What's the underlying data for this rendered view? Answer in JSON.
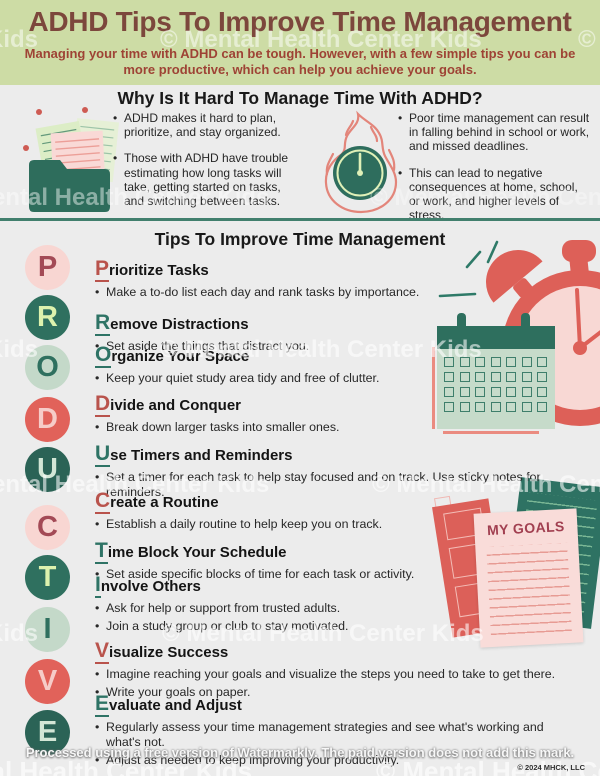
{
  "header": {
    "title": "ADHD Tips To Improve Time Management",
    "subtitle": "Managing your time with ADHD can be tough.  However, with a few simple tips you can be more productive, which can help you achieve your goals."
  },
  "why_section": {
    "title": "Why Is It Hard To Manage Time With ADHD?",
    "icons": {
      "left": "folder-with-documents-icon",
      "right": "clock-on-fire-icon"
    },
    "left_bullets": [
      "ADHD makes it hard to plan, prioritize, and stay organized.",
      "Those with ADHD have trouble estimating how long tasks will take, getting started on tasks, and switching between tasks."
    ],
    "right_bullets": [
      "Poor time management can result in falling behind in school or work, and missed deadlines.",
      "This can lead to negative consequences at home, school, or work, and higher levels of stress."
    ]
  },
  "tips_section": {
    "title": "Tips To Improve Time Management",
    "acronym": [
      "P",
      "R",
      "O",
      "D",
      "U",
      "C",
      "T",
      "I",
      "V",
      "E"
    ],
    "tips": [
      {
        "letter": "P",
        "rest": "rioritize Tasks",
        "accent": "red",
        "bullets": [
          "Make a to-do list each day and rank tasks by importance."
        ]
      },
      {
        "letter": "R",
        "rest": "emove Distractions",
        "accent": "teal",
        "bullets": [
          "Set aside the things that distract you."
        ]
      },
      {
        "letter": "O",
        "rest": "rganize Your Space",
        "accent": "teal",
        "bullets": [
          "Keep your quiet study area tidy and free of clutter."
        ]
      },
      {
        "letter": "D",
        "rest": "ivide and Conquer",
        "accent": "red",
        "bullets": [
          "Break down larger tasks into smaller ones."
        ]
      },
      {
        "letter": "U",
        "rest": "se Timers and Reminders",
        "accent": "teal",
        "bullets": [
          "Set a timer for each task to help stay focused and on track.  Use sticky notes for reminders."
        ]
      },
      {
        "letter": "C",
        "rest": "reate a Routine",
        "accent": "red",
        "bullets": [
          "Establish a daily routine to help keep you on track."
        ]
      },
      {
        "letter": "T",
        "rest": "ime Block Your Schedule",
        "accent": "teal",
        "bullets": [
          "Set aside specific blocks of time for each task or activity."
        ]
      },
      {
        "letter": "I",
        "rest": "nvolve Others",
        "accent": "teal",
        "bullets": [
          "Ask for help or support from trusted adults.",
          "Join a study group or club to stay motivated."
        ]
      },
      {
        "letter": "V",
        "rest": "isualize Success",
        "accent": "red",
        "bullets": [
          "Imagine reaching your goals and visualize the steps you need to take to get there.",
          "Write your goals on paper."
        ]
      },
      {
        "letter": "E",
        "rest": "valuate and Adjust",
        "accent": "teal",
        "bullets": [
          "Regularly assess your time management strategies and see what's working and what's not.",
          "Adjust as needed to keep improving your productivity."
        ]
      }
    ]
  },
  "illustrations": {
    "alarm_clock": "alarm-clock",
    "calendar": "checkbox-calendar",
    "goals": "my-goals-papers",
    "my_goals_label": "MY GOALS"
  },
  "watermarks": {
    "row1_left": "Kids",
    "row1_center": "© Mental Health Center Kids",
    "row1_right": "© M",
    "row2_left": "ental Health Center Kids",
    "row2_right": "© Mental Health Cen",
    "row3_left": "Kids",
    "row3_center": "© Mental Health Center Kids",
    "row4_left": "ental Health Center Kids",
    "row4_right": "© Mental Health Cente",
    "row5_left": "Kids",
    "row5_center": "© Mental Health Center Kids",
    "bottom_left": "ntal Health Center Kids",
    "bottom_right": "© Mental Health Center"
  },
  "footer": {
    "watermark_notice": "Processed using a free version of Watermarkly. The paid version does not add this mark.",
    "copyright": "© 2024 MHCK, LLC"
  },
  "colors": {
    "header_bg": "#cddca5",
    "title_brown": "#7c473c",
    "subtitle_red": "#9e4335",
    "teal": "#2e6f5e",
    "sage": "#c4d9c9",
    "red": "#e1625a",
    "pink": "#f8d6d2",
    "maroon": "#a34a56",
    "cap_red": "#b9534c",
    "cap_teal": "#2e7365",
    "body_bg": "#ececec"
  }
}
